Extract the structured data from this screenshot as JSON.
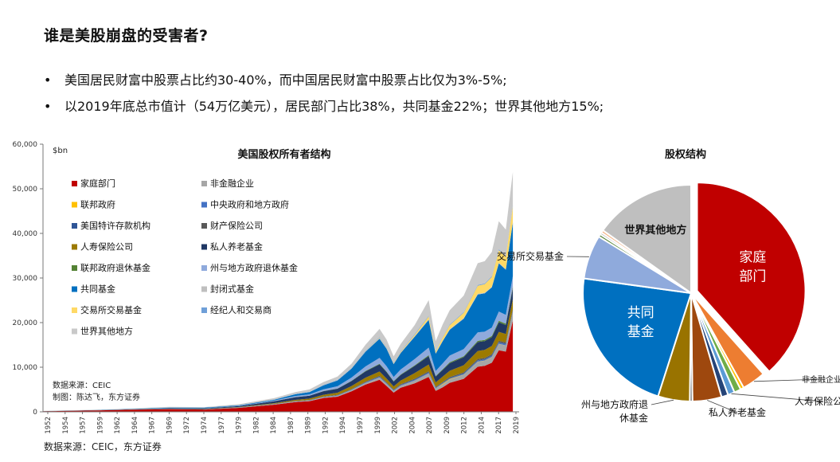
{
  "page": {
    "title": "谁是美股崩盘的受害者?",
    "bullets": [
      "美国居民财富中股票占比约30-40%，而中国居民财富中股票占比仅为3%-5%;",
      "以2019年底总市值计（54万亿美元），居民部门占比38%，共同基金22%；世界其他地方15%;"
    ],
    "bottom_source": "数据来源：CEIC，东方证券"
  },
  "chart_data": [
    {
      "type": "area",
      "title": "美国股权所有者结构",
      "unit_label": "$bn",
      "ylim": [
        0,
        60000
      ],
      "yticks": [
        0,
        10000,
        20000,
        30000,
        40000,
        50000,
        60000
      ],
      "ytick_labels": [
        "0",
        "10,000",
        "20,000",
        "30,000",
        "40,000",
        "50,000",
        "60,000"
      ],
      "x_tick_labels": [
        "1952",
        "1954",
        "1957",
        "1959",
        "1962",
        "1964",
        "1967",
        "1969",
        "1972",
        "1974",
        "1977",
        "1979",
        "1982",
        "1984",
        "1987",
        "1989",
        "1992",
        "1994",
        "1997",
        "1999",
        "2002",
        "2004",
        "2007",
        "2009",
        "2012",
        "2014",
        "2017",
        "2019"
      ],
      "x": [
        1952,
        1960,
        1965,
        1970,
        1975,
        1980,
        1985,
        1988,
        1990,
        1992,
        1994,
        1996,
        1998,
        2000,
        2001,
        2002,
        2003,
        2005,
        2007,
        2008,
        2009,
        2010,
        2012,
        2014,
        2015,
        2016,
        2017,
        2018,
        2019
      ],
      "source_note": "数据来源：CEIC",
      "credit_note": "制图：陈达飞，东方证券",
      "legend": [
        {
          "name": "家庭部门",
          "color": "#c00000"
        },
        {
          "name": "非金融企业",
          "color": "#a6a6a6"
        },
        {
          "name": "联邦政府",
          "color": "#ffc000"
        },
        {
          "name": "中央政府和地方政府",
          "color": "#4472c4"
        },
        {
          "name": "美国特许存款机构",
          "color": "#2f5597"
        },
        {
          "name": "财产保险公司",
          "color": "#595959"
        },
        {
          "name": "人寿保险公司",
          "color": "#9c7a00"
        },
        {
          "name": "私人养老基金",
          "color": "#203864"
        },
        {
          "name": "联邦政府退休基金",
          "color": "#548235"
        },
        {
          "name": "州与地方政府退休基金",
          "color": "#8faadc"
        },
        {
          "name": "共同基金",
          "color": "#0070c0"
        },
        {
          "name": "封闭式基金",
          "color": "#bfbfbf"
        },
        {
          "name": "交易所交易基金",
          "color": "#ffd966"
        },
        {
          "name": "经纪人和交易商",
          "color": "#6f9fd8"
        },
        {
          "name": "世界其他地方",
          "color": "#c9c9c9"
        }
      ],
      "series": [
        {
          "name": "家庭部门",
          "color": "#c00000",
          "values": [
            130,
            330,
            500,
            600,
            500,
            900,
            1600,
            2200,
            2400,
            3100,
            3400,
            4600,
            6100,
            7200,
            5800,
            4300,
            5400,
            6400,
            7800,
            4700,
            5500,
            6500,
            7400,
            10100,
            10300,
            11000,
            13800,
            13500,
            20500
          ]
        },
        {
          "name": "非金融企业",
          "color": "#a6a6a6",
          "values": [
            5,
            10,
            15,
            20,
            20,
            40,
            80,
            100,
            120,
            150,
            180,
            250,
            350,
            500,
            450,
            380,
            450,
            600,
            800,
            550,
            650,
            750,
            900,
            1100,
            1150,
            1250,
            1400,
            1350,
            1800
          ]
        },
        {
          "name": "联邦政府",
          "color": "#ffc000",
          "values": [
            0,
            0,
            0,
            0,
            0,
            0,
            0,
            0,
            0,
            0,
            0,
            0,
            0,
            0,
            0,
            0,
            0,
            0,
            0,
            0,
            150,
            100,
            50,
            50,
            50,
            50,
            50,
            50,
            50
          ]
        },
        {
          "name": "中央政府和地方政府",
          "color": "#4472c4",
          "values": [
            0,
            0,
            0,
            5,
            10,
            20,
            30,
            40,
            40,
            60,
            70,
            80,
            100,
            120,
            110,
            90,
            100,
            130,
            150,
            100,
            120,
            140,
            160,
            200,
            200,
            210,
            230,
            220,
            250
          ]
        },
        {
          "name": "美国特许存款机构",
          "color": "#2f5597",
          "values": [
            2,
            5,
            8,
            10,
            10,
            15,
            20,
            25,
            30,
            35,
            40,
            50,
            70,
            90,
            80,
            70,
            80,
            100,
            120,
            80,
            90,
            100,
            110,
            130,
            130,
            140,
            150,
            140,
            160
          ]
        },
        {
          "name": "财产保险公司",
          "color": "#595959",
          "values": [
            5,
            10,
            15,
            25,
            30,
            40,
            60,
            70,
            75,
            80,
            90,
            110,
            140,
            180,
            170,
            150,
            170,
            200,
            230,
            160,
            180,
            210,
            230,
            270,
            270,
            280,
            300,
            290,
            310
          ]
        },
        {
          "name": "人寿保险公司",
          "color": "#9c7a00",
          "values": [
            5,
            10,
            20,
            40,
            60,
            80,
            150,
            250,
            300,
            400,
            500,
            700,
            900,
            950,
            850,
            700,
            800,
            1250,
            1500,
            1000,
            1200,
            1400,
            1600,
            1800,
            1800,
            1850,
            2000,
            1900,
            2200
          ]
        },
        {
          "name": "私人养老基金",
          "color": "#203864",
          "values": [
            5,
            20,
            40,
            100,
            150,
            200,
            450,
            600,
            650,
            800,
            900,
            1100,
            1400,
            1600,
            1450,
            1100,
            1250,
            1600,
            1900,
            1300,
            1500,
            1700,
            1800,
            2000,
            1950,
            1950,
            2150,
            2000,
            2500
          ]
        },
        {
          "name": "联邦政府退休基金",
          "color": "#548235",
          "values": [
            0,
            0,
            0,
            0,
            0,
            0,
            0,
            10,
            15,
            30,
            50,
            80,
            120,
            150,
            130,
            110,
            130,
            150,
            200,
            150,
            170,
            200,
            220,
            260,
            260,
            270,
            310,
            300,
            350
          ]
        },
        {
          "name": "州与地方政府退休基金",
          "color": "#8faadc",
          "values": [
            0,
            5,
            10,
            30,
            50,
            70,
            150,
            250,
            280,
            400,
            500,
            700,
            1000,
            1300,
            1200,
            900,
            1100,
            1400,
            1700,
            1100,
            1300,
            1500,
            1600,
            1900,
            1850,
            1900,
            2100,
            2000,
            2300
          ]
        },
        {
          "name": "共同基金",
          "color": "#0070c0",
          "values": [
            10,
            30,
            60,
            100,
            100,
            100,
            200,
            400,
            500,
            900,
            1300,
            2000,
            3300,
            4300,
            3900,
            2900,
            3700,
            5000,
            6200,
            3900,
            5000,
            5800,
            6800,
            8500,
            8600,
            9000,
            10800,
            10100,
            12000
          ]
        },
        {
          "name": "封闭式基金",
          "color": "#bfbfbf",
          "values": [
            5,
            10,
            15,
            20,
            20,
            20,
            30,
            60,
            70,
            80,
            90,
            100,
            120,
            150,
            140,
            110,
            130,
            160,
            170,
            100,
            120,
            130,
            140,
            150,
            140,
            140,
            150,
            130,
            140
          ]
        },
        {
          "name": "交易所交易基金",
          "color": "#ffd966",
          "values": [
            0,
            0,
            0,
            0,
            0,
            0,
            0,
            0,
            0,
            0,
            10,
            30,
            60,
            100,
            100,
            100,
            150,
            300,
            600,
            400,
            700,
            900,
            1200,
            1800,
            1900,
            2200,
            2800,
            2700,
            3500
          ]
        },
        {
          "name": "经纪人和交易商",
          "color": "#6f9fd8",
          "values": [
            2,
            5,
            8,
            10,
            10,
            15,
            20,
            30,
            40,
            50,
            60,
            80,
            100,
            150,
            140,
            120,
            130,
            150,
            170,
            100,
            120,
            140,
            150,
            170,
            170,
            180,
            200,
            180,
            210
          ]
        },
        {
          "name": "世界其他地方",
          "color": "#c9c9c9",
          "values": [
            20,
            50,
            90,
            150,
            100,
            220,
            280,
            400,
            500,
            600,
            700,
            900,
            1300,
            1800,
            1700,
            1400,
            1600,
            2000,
            3500,
            2200,
            2800,
            3200,
            3700,
            4900,
            5000,
            5400,
            6300,
            6000,
            7500
          ]
        }
      ]
    },
    {
      "type": "pie",
      "title": "股权结构",
      "slices": [
        {
          "label": "家庭部门",
          "value": 38.0,
          "color": "#c00000",
          "label_text": [
            "家庭",
            "部门"
          ]
        },
        {
          "label": "非金融企业",
          "value": 3.5,
          "color": "#ed7d31",
          "label_text": [
            "非金融企业"
          ]
        },
        {
          "label": "联邦政府",
          "value": 0.5,
          "color": "#ffc000",
          "label_text": []
        },
        {
          "label": "联邦政府退休基金",
          "value": 1.0,
          "color": "#70ad47",
          "label_text": []
        },
        {
          "label": "人寿保险公司",
          "value": 1.0,
          "color": "#5b9bd5",
          "label_text": [
            "人寿保险公司"
          ]
        },
        {
          "label": "财产保险公司",
          "value": 1.0,
          "color": "#264478",
          "label_text": []
        },
        {
          "label": "私人养老基金",
          "value": 4.3,
          "color": "#9e480e",
          "label_text": [
            "私人养老基金"
          ]
        },
        {
          "label": "美国特许存款机构",
          "value": 0.4,
          "color": "#636363",
          "label_text": []
        },
        {
          "label": "州与地方政府退休基金",
          "value": 4.7,
          "color": "#997300",
          "label_text": [
            "州与地方政府退",
            "休基金"
          ]
        },
        {
          "label": "共同基金",
          "value": 22.0,
          "color": "#0070c0",
          "label_text": [
            "共同",
            "基金"
          ]
        },
        {
          "label": "交易所交易基金",
          "value": 6.5,
          "color": "#8faadc",
          "label_text": [
            "交易所交易基金"
          ]
        },
        {
          "label": "中央政府和地方政府",
          "value": 0.4,
          "color": "#548235",
          "label_text": []
        },
        {
          "label": "经纪人和交易商",
          "value": 0.3,
          "color": "#a5a5a5",
          "label_text": []
        },
        {
          "label": "封闭式基金",
          "value": 0.4,
          "color": "#f4b183",
          "label_text": []
        },
        {
          "label": "世界其他地方",
          "value": 15.0,
          "color": "#bfbfbf",
          "label_text": [
            "世界其他地方"
          ]
        }
      ]
    }
  ]
}
